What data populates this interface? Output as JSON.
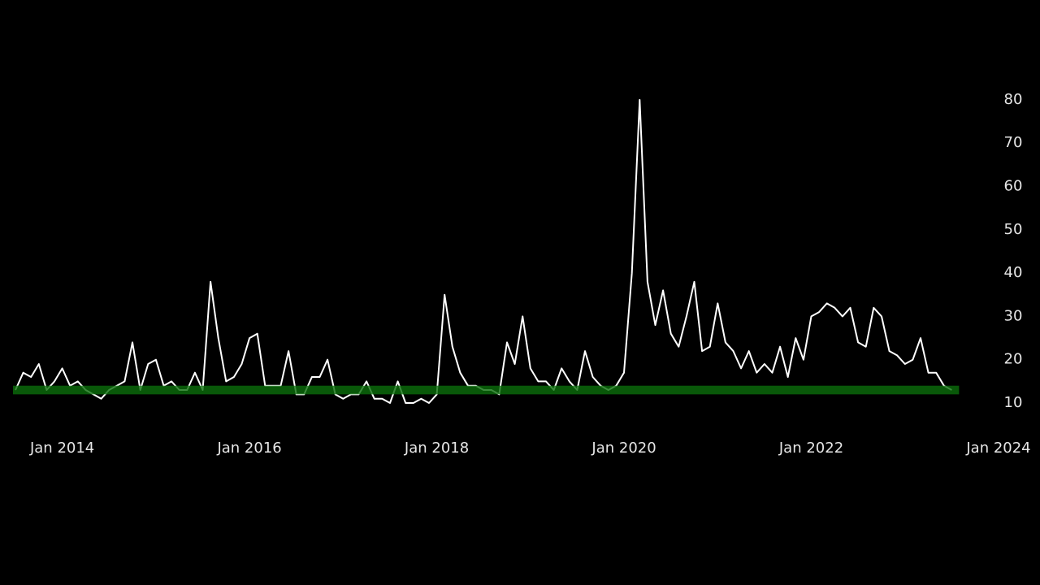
{
  "chart_data": {
    "type": "line",
    "x": [
      "2013-07",
      "2013-08",
      "2013-09",
      "2013-10",
      "2013-11",
      "2013-12",
      "2014-01",
      "2014-02",
      "2014-03",
      "2014-04",
      "2014-05",
      "2014-06",
      "2014-07",
      "2014-08",
      "2014-09",
      "2014-10",
      "2014-11",
      "2014-12",
      "2015-01",
      "2015-02",
      "2015-03",
      "2015-04",
      "2015-05",
      "2015-06",
      "2015-07",
      "2015-08",
      "2015-09",
      "2015-10",
      "2015-11",
      "2015-12",
      "2016-01",
      "2016-02",
      "2016-03",
      "2016-04",
      "2016-05",
      "2016-06",
      "2016-07",
      "2016-08",
      "2016-09",
      "2016-10",
      "2016-11",
      "2016-12",
      "2017-01",
      "2017-02",
      "2017-03",
      "2017-04",
      "2017-05",
      "2017-06",
      "2017-07",
      "2017-08",
      "2017-09",
      "2017-10",
      "2017-11",
      "2017-12",
      "2018-01",
      "2018-02",
      "2018-03",
      "2018-04",
      "2018-05",
      "2018-06",
      "2018-07",
      "2018-08",
      "2018-09",
      "2018-10",
      "2018-11",
      "2018-12",
      "2019-01",
      "2019-02",
      "2019-03",
      "2019-04",
      "2019-05",
      "2019-06",
      "2019-07",
      "2019-08",
      "2019-09",
      "2019-10",
      "2019-11",
      "2019-12",
      "2020-01",
      "2020-02",
      "2020-03",
      "2020-04",
      "2020-05",
      "2020-06",
      "2020-07",
      "2020-08",
      "2020-09",
      "2020-10",
      "2020-11",
      "2020-12",
      "2021-01",
      "2021-02",
      "2021-03",
      "2021-04",
      "2021-05",
      "2021-06",
      "2021-07",
      "2021-08",
      "2021-09",
      "2021-10",
      "2021-11",
      "2021-12",
      "2022-01",
      "2022-02",
      "2022-03",
      "2022-04",
      "2022-05",
      "2022-06",
      "2022-07",
      "2022-08",
      "2022-09",
      "2022-10",
      "2022-11",
      "2022-12",
      "2023-01",
      "2023-02",
      "2023-03",
      "2023-04",
      "2023-05",
      "2023-06",
      "2023-07"
    ],
    "series": [
      {
        "color": "#ffffff",
        "values": [
          13,
          17,
          16,
          19,
          13,
          15,
          18,
          14,
          15,
          13,
          12,
          11,
          13,
          14,
          15,
          24,
          13,
          19,
          20,
          14,
          15,
          13,
          13,
          17,
          13,
          38,
          25,
          15,
          16,
          19,
          25,
          26,
          14,
          14,
          14,
          22,
          12,
          12,
          16,
          16,
          20,
          12,
          11,
          12,
          12,
          15,
          11,
          11,
          10,
          15,
          10,
          10,
          11,
          10,
          12,
          35,
          23,
          17,
          14,
          14,
          13,
          13,
          12,
          24,
          19,
          30,
          18,
          15,
          15,
          13,
          18,
          15,
          13,
          22,
          16,
          14,
          13,
          14,
          17,
          40,
          80,
          38,
          28,
          36,
          26,
          23,
          30,
          38,
          22,
          23,
          33,
          24,
          22,
          18,
          22,
          17,
          19,
          17,
          23,
          16,
          25,
          20,
          30,
          31,
          33,
          32,
          30,
          32,
          24,
          23,
          32,
          30,
          22,
          21,
          19,
          20,
          25,
          17,
          17,
          14,
          13
        ]
      }
    ],
    "band": {
      "ymin": 12,
      "ymax": 14,
      "color": "#0b6e0b"
    },
    "xlim": [
      "2013-07",
      "2024-01"
    ],
    "xticks": [
      {
        "value": "2014-01",
        "label": "Jan 2014"
      },
      {
        "value": "2016-01",
        "label": "Jan 2016"
      },
      {
        "value": "2018-01",
        "label": "Jan 2018"
      },
      {
        "value": "2020-01",
        "label": "Jan 2020"
      },
      {
        "value": "2022-01",
        "label": "Jan 2022"
      },
      {
        "value": "2024-01",
        "label": "Jan 2024"
      }
    ],
    "ylim": [
      5.5,
      84.3
    ],
    "yticks": [
      10,
      20,
      30,
      40,
      50,
      60,
      70,
      80
    ]
  }
}
